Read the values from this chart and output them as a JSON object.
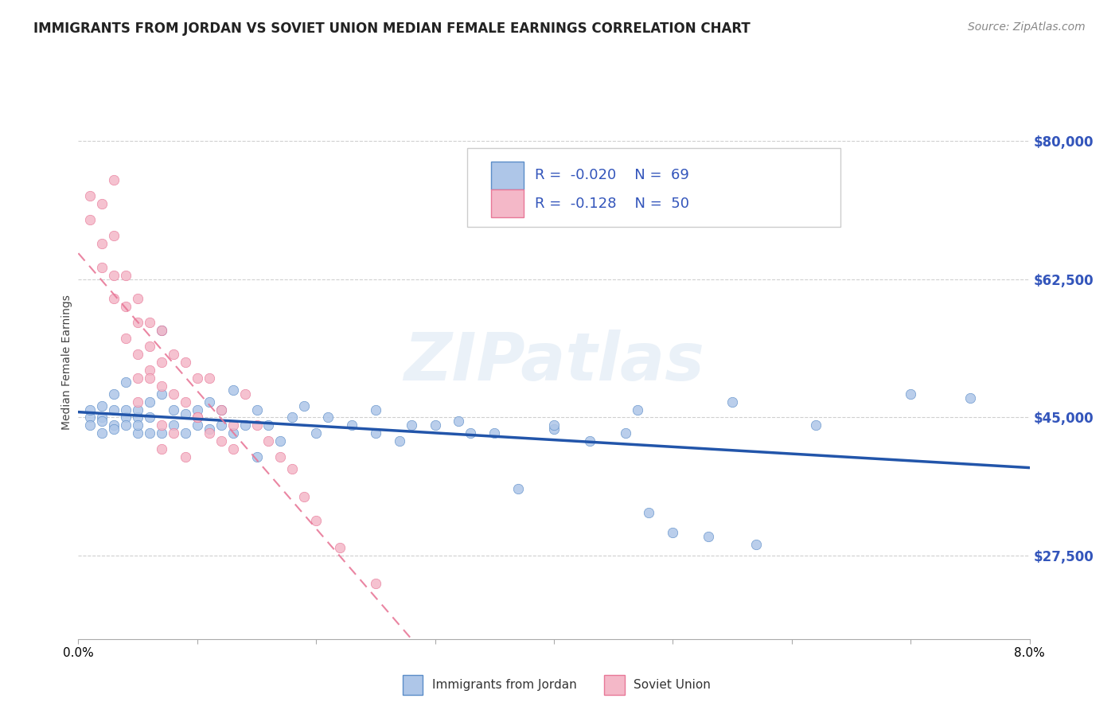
{
  "title": "IMMIGRANTS FROM JORDAN VS SOVIET UNION MEDIAN FEMALE EARNINGS CORRELATION CHART",
  "source": "Source: ZipAtlas.com",
  "ylabel": "Median Female Earnings",
  "y_tick_labels": [
    "$27,500",
    "$45,000",
    "$62,500",
    "$80,000"
  ],
  "y_tick_values": [
    27500,
    45000,
    62500,
    80000
  ],
  "y_min": 17000,
  "y_max": 87000,
  "x_min": 0.0,
  "x_max": 0.08,
  "x_tick_positions": [
    0.0,
    0.01,
    0.02,
    0.03,
    0.04,
    0.05,
    0.06,
    0.07,
    0.08
  ],
  "x_tick_labels": [
    "0.0%",
    "",
    "",
    "",
    "",
    "",
    "",
    "",
    "8.0%"
  ],
  "jordan_color": "#aec6e8",
  "jordan_edge_color": "#5b8dc8",
  "jordan_line_color": "#2255aa",
  "soviet_color": "#f4b8c8",
  "soviet_edge_color": "#e87898",
  "soviet_line_color": "#e87898",
  "background_color": "#ffffff",
  "grid_color": "#d0d0d0",
  "watermark": "ZIPatlas",
  "legend_R1": "R =  -0.020",
  "legend_N1": "N =  69",
  "legend_R2": "R =  -0.128",
  "legend_N2": "N =  50",
  "legend_label1": "Immigrants from Jordan",
  "legend_label2": "Soviet Union",
  "jordan_x": [
    0.001,
    0.001,
    0.001,
    0.002,
    0.002,
    0.002,
    0.002,
    0.003,
    0.003,
    0.003,
    0.003,
    0.004,
    0.004,
    0.004,
    0.004,
    0.005,
    0.005,
    0.005,
    0.005,
    0.006,
    0.006,
    0.006,
    0.007,
    0.007,
    0.007,
    0.008,
    0.008,
    0.009,
    0.009,
    0.01,
    0.01,
    0.011,
    0.011,
    0.012,
    0.012,
    0.013,
    0.013,
    0.014,
    0.015,
    0.015,
    0.016,
    0.017,
    0.018,
    0.019,
    0.02,
    0.021,
    0.023,
    0.025,
    0.027,
    0.03,
    0.032,
    0.035,
    0.037,
    0.04,
    0.043,
    0.046,
    0.048,
    0.05,
    0.053,
    0.057,
    0.025,
    0.028,
    0.033,
    0.04,
    0.047,
    0.055,
    0.062,
    0.07,
    0.075
  ],
  "jordan_y": [
    45000,
    44000,
    46000,
    45000,
    44500,
    46500,
    43000,
    44000,
    46000,
    48000,
    43500,
    45000,
    46000,
    44000,
    49500,
    43000,
    45000,
    46000,
    44000,
    43000,
    45000,
    47000,
    56000,
    48000,
    43000,
    46000,
    44000,
    43000,
    45500,
    46000,
    44000,
    47000,
    43500,
    46000,
    44000,
    48500,
    43000,
    44000,
    46000,
    40000,
    44000,
    42000,
    45000,
    46500,
    43000,
    45000,
    44000,
    43000,
    42000,
    44000,
    44500,
    43000,
    36000,
    43500,
    42000,
    43000,
    33000,
    30500,
    30000,
    29000,
    46000,
    44000,
    43000,
    44000,
    46000,
    47000,
    44000,
    48000,
    47500
  ],
  "soviet_x": [
    0.001,
    0.001,
    0.002,
    0.002,
    0.002,
    0.003,
    0.003,
    0.003,
    0.003,
    0.004,
    0.004,
    0.004,
    0.005,
    0.005,
    0.005,
    0.005,
    0.006,
    0.006,
    0.006,
    0.007,
    0.007,
    0.007,
    0.008,
    0.008,
    0.009,
    0.009,
    0.01,
    0.01,
    0.011,
    0.012,
    0.013,
    0.014,
    0.015,
    0.016,
    0.017,
    0.018,
    0.019,
    0.02,
    0.022,
    0.025,
    0.005,
    0.006,
    0.007,
    0.007,
    0.008,
    0.009,
    0.01,
    0.011,
    0.012,
    0.013
  ],
  "soviet_y": [
    73000,
    70000,
    72000,
    67000,
    64000,
    68000,
    63000,
    60000,
    75000,
    63000,
    59000,
    55000,
    60000,
    57000,
    53000,
    50000,
    57000,
    54000,
    51000,
    56000,
    52000,
    49000,
    53000,
    48000,
    52000,
    47000,
    50000,
    45000,
    50000,
    46000,
    44000,
    48000,
    44000,
    42000,
    40000,
    38500,
    35000,
    32000,
    28500,
    24000,
    47000,
    50000,
    44000,
    41000,
    43000,
    40000,
    45000,
    43000,
    42000,
    41000
  ]
}
